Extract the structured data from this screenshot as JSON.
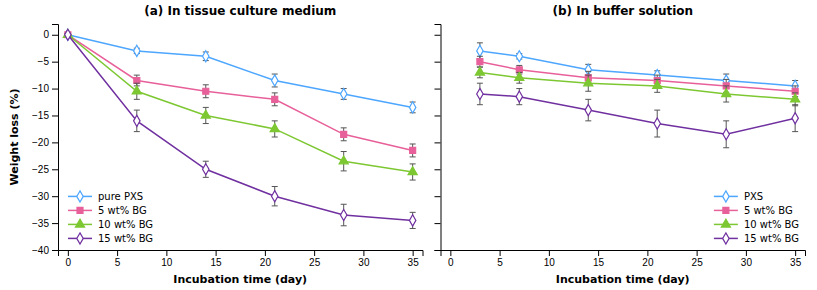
{
  "chart_data": [
    {
      "type": "line",
      "title": "(a) In tissue culture medium",
      "x_label": "Incubation time (day)",
      "y_label": "Weight loss (%)",
      "xlim": [
        -1,
        36
      ],
      "ylim": [
        -40,
        2
      ],
      "xticks": [
        0,
        5,
        10,
        15,
        20,
        25,
        30,
        35
      ],
      "yticks": [
        0,
        -5,
        -10,
        -15,
        -20,
        -25,
        -30,
        -35,
        -40
      ],
      "grid": false,
      "legend": "lower left",
      "series": [
        {
          "name": "pure PXS",
          "color": "#4DA6FF",
          "marker": "diamond-open",
          "x": [
            0,
            7,
            14,
            21,
            28,
            35
          ],
          "values": [
            0,
            -3.0,
            -4.0,
            -8.5,
            -11.0,
            -13.5
          ],
          "errors": [
            0.2,
            0.5,
            0.8,
            1.2,
            1.0,
            1.0
          ]
        },
        {
          "name": "5 wt% BG",
          "color": "#E8609A",
          "marker": "square",
          "x": [
            0,
            7,
            14,
            21,
            28,
            35
          ],
          "values": [
            0,
            -8.5,
            -10.5,
            -12.0,
            -18.5,
            -21.5
          ],
          "errors": [
            0.2,
            1.0,
            1.2,
            1.2,
            1.2,
            1.2
          ]
        },
        {
          "name": "10 wt% BG",
          "color": "#7DC832",
          "marker": "triangle",
          "x": [
            0,
            7,
            14,
            21,
            28,
            35
          ],
          "values": [
            0,
            -10.5,
            -15.0,
            -17.5,
            -23.5,
            -25.5
          ],
          "errors": [
            0.2,
            1.5,
            1.5,
            1.5,
            1.8,
            1.5
          ]
        },
        {
          "name": "15 wt% BG",
          "color": "#7030A0",
          "marker": "diamond-open",
          "x": [
            0,
            7,
            14,
            21,
            28,
            35
          ],
          "values": [
            0,
            -16.0,
            -25.0,
            -30.0,
            -33.5,
            -34.5
          ],
          "errors": [
            0.2,
            2.0,
            1.5,
            1.8,
            2.0,
            1.5
          ]
        }
      ]
    },
    {
      "type": "line",
      "title": "(b) In buffer solution",
      "x_label": "Incubation time (day)",
      "xlim": [
        -1,
        36
      ],
      "ylim": [
        -40,
        2
      ],
      "xticks": [
        0,
        5,
        10,
        15,
        20,
        25,
        30,
        35
      ],
      "yticks": [
        0,
        -5,
        -10,
        -15,
        -20,
        -25,
        -30,
        -35,
        -40
      ],
      "grid": false,
      "legend": "lower right",
      "tick_labels": "x",
      "series": [
        {
          "name": "PXS",
          "color": "#4DA6FF",
          "marker": "diamond-open",
          "x": [
            3,
            7,
            14,
            21,
            28,
            35
          ],
          "values": [
            -3.0,
            -4.0,
            -6.5,
            -7.5,
            -8.5,
            -9.5
          ],
          "errors": [
            1.5,
            0.5,
            1.0,
            0.8,
            1.2,
            1.0
          ]
        },
        {
          "name": "5 wt% BG",
          "color": "#E8609A",
          "marker": "square",
          "x": [
            3,
            7,
            14,
            21,
            28,
            35
          ],
          "values": [
            -5.0,
            -6.5,
            -8.0,
            -8.5,
            -9.5,
            -10.5
          ],
          "errors": [
            1.0,
            0.8,
            1.2,
            1.0,
            1.2,
            1.0
          ]
        },
        {
          "name": "10 wt% BG",
          "color": "#7DC832",
          "marker": "triangle",
          "x": [
            3,
            7,
            14,
            21,
            28,
            35
          ],
          "values": [
            -7.0,
            -8.0,
            -9.0,
            -9.5,
            -11.0,
            -12.0
          ],
          "errors": [
            1.0,
            1.0,
            1.5,
            1.2,
            1.5,
            1.2
          ]
        },
        {
          "name": "15 wt% BG",
          "color": "#7030A0",
          "marker": "diamond-open",
          "x": [
            3,
            7,
            14,
            21,
            28,
            35
          ],
          "values": [
            -11.0,
            -11.5,
            -14.0,
            -16.5,
            -18.5,
            -15.5
          ],
          "errors": [
            2.0,
            1.5,
            2.0,
            2.5,
            2.5,
            2.5
          ]
        }
      ]
    }
  ]
}
